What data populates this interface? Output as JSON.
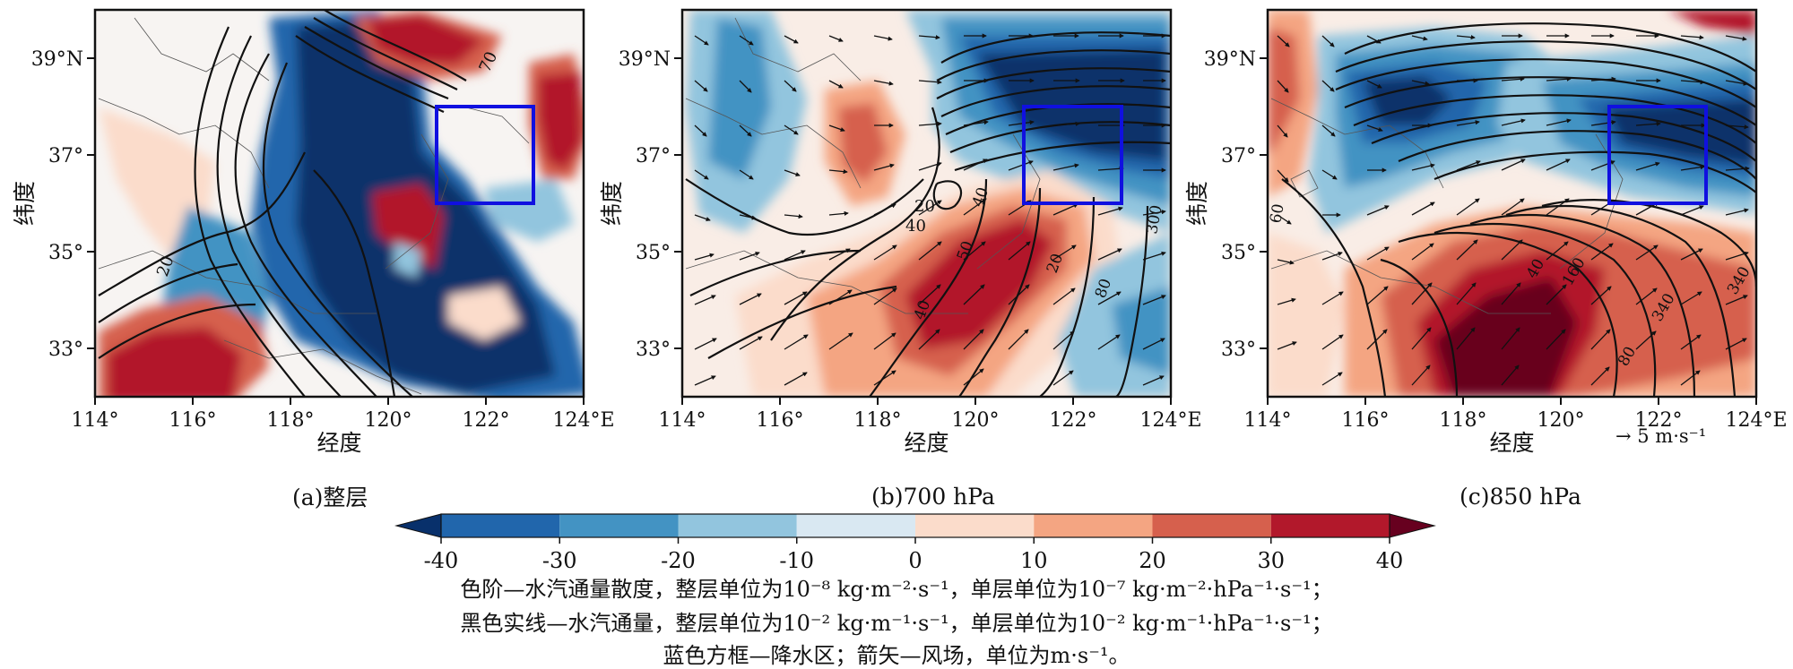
{
  "chart_data": {
    "type": "heatmap",
    "title": "",
    "panels": [
      {
        "id": "a",
        "label": "(a)整层"
      },
      {
        "id": "b",
        "label": "(b)700 hPa"
      },
      {
        "id": "c",
        "label": "(c)850 hPa"
      }
    ],
    "xlabel": "经度",
    "ylabel": "纬度",
    "xlim": [
      114,
      124
    ],
    "ylim": [
      32,
      40
    ],
    "x_ticks": [
      114,
      116,
      118,
      120,
      122,
      124
    ],
    "x_tick_labels": [
      "114°",
      "116°",
      "118°",
      "120°",
      "122°",
      "124°E"
    ],
    "y_ticks": [
      33,
      35,
      37,
      39
    ],
    "y_tick_labels": [
      "33°",
      "35°",
      "37°",
      "39°N"
    ],
    "precip_box": {
      "lon": [
        121,
        123
      ],
      "lat": [
        36,
        38
      ]
    },
    "contour_labels": {
      "a": [
        "70",
        "20"
      ],
      "b": [
        "20",
        "40",
        "40",
        "50",
        "20",
        "40",
        "80",
        "300"
      ],
      "c": [
        "60",
        "40",
        "160",
        "340",
        "340",
        "80"
      ]
    },
    "wind_reference": "→ 5 m·s⁻¹",
    "colorbar": {
      "levels": [
        -40,
        -30,
        -20,
        -10,
        0,
        10,
        20,
        30,
        40
      ],
      "tick_labels": [
        "-40",
        "-30",
        "-20",
        "-10",
        "0",
        "10",
        "20",
        "30",
        "40"
      ],
      "colors": [
        "#08306b",
        "#2166ac",
        "#4393c3",
        "#92c5de",
        "#d9e8f2",
        "#fbdccb",
        "#f4a582",
        "#d6604d",
        "#b2182b",
        "#67001f"
      ],
      "extend": "both"
    }
  },
  "notes": {
    "line1": "色阶—水汽通量散度，整层单位为10⁻⁸ kg·m⁻²·s⁻¹，单层单位为10⁻⁷ kg·m⁻²·hPa⁻¹·s⁻¹；",
    "line2": "黑色实线—水汽通量，整层单位为10⁻² kg·m⁻¹·s⁻¹，单层单位为10⁻² kg·m⁻¹·hPa⁻¹·s⁻¹；",
    "line3": "蓝色方框—降水区；箭矢—风场，单位为m·s⁻¹。"
  },
  "colors": {
    "box": "#1010e0",
    "contour": "#111111",
    "axis": "#111111"
  }
}
